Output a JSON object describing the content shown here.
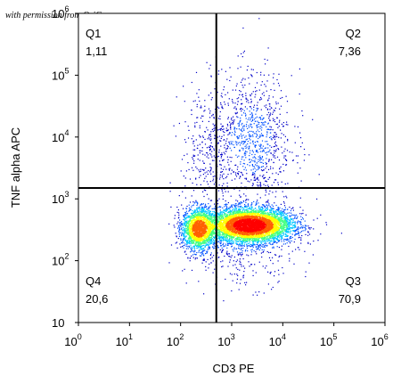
{
  "credit": "with permission from OriGene",
  "chart_data": {
    "type": "scatter",
    "subtype": "flow-cytometry-density-dot-plot",
    "xlabel": "CD3 PE",
    "ylabel": "TNF alpha APC",
    "x_scale": "log",
    "y_scale": "log",
    "xlim": [
      1,
      1000000
    ],
    "ylim": [
      10,
      1000000
    ],
    "x_ticks": [
      {
        "base": "10",
        "exp": "0",
        "value": 1
      },
      {
        "base": "10",
        "exp": "1",
        "value": 10
      },
      {
        "base": "10",
        "exp": "2",
        "value": 100
      },
      {
        "base": "10",
        "exp": "3",
        "value": 1000
      },
      {
        "base": "10",
        "exp": "4",
        "value": 10000
      },
      {
        "base": "10",
        "exp": "5",
        "value": 100000
      },
      {
        "base": "10",
        "exp": "6",
        "value": 1000000
      }
    ],
    "y_ticks": [
      {
        "base": "10",
        "exp": "",
        "value": 10
      },
      {
        "base": "10",
        "exp": "2",
        "value": 100
      },
      {
        "base": "10",
        "exp": "3",
        "value": 1000
      },
      {
        "base": "10",
        "exp": "4",
        "value": 10000
      },
      {
        "base": "10",
        "exp": "5",
        "value": 100000
      },
      {
        "base": "10",
        "exp": "6",
        "value": 1000000
      }
    ],
    "gates": {
      "x": 500,
      "y": 1500
    },
    "quadrants": [
      {
        "name": "Q1",
        "value": "1,11",
        "position": "top-left"
      },
      {
        "name": "Q2",
        "value": "7,36",
        "position": "top-right"
      },
      {
        "name": "Q3",
        "value": "70,9",
        "position": "bottom-right"
      },
      {
        "name": "Q4",
        "value": "20,6",
        "position": "bottom-left"
      }
    ],
    "populations": [
      {
        "cx": 2200,
        "cy": 380,
        "sx": 0.42,
        "sy": 0.14,
        "weight": 0.62
      },
      {
        "cx": 220,
        "cy": 330,
        "sx": 0.16,
        "sy": 0.17,
        "weight": 0.2
      },
      {
        "cx": 2400,
        "cy": 9000,
        "sx": 0.4,
        "sy": 0.55,
        "weight": 0.11
      },
      {
        "cx": 300,
        "cy": 6000,
        "sx": 0.25,
        "sy": 0.55,
        "weight": 0.03
      },
      {
        "cx": 1500,
        "cy": 150,
        "sx": 0.55,
        "sy": 0.3,
        "weight": 0.04
      }
    ],
    "colormap": [
      "#0000c8",
      "#0050ff",
      "#00c8ff",
      "#40ff80",
      "#ffff00",
      "#ff6000",
      "#ff0000"
    ],
    "grid": false,
    "legend": "none"
  }
}
